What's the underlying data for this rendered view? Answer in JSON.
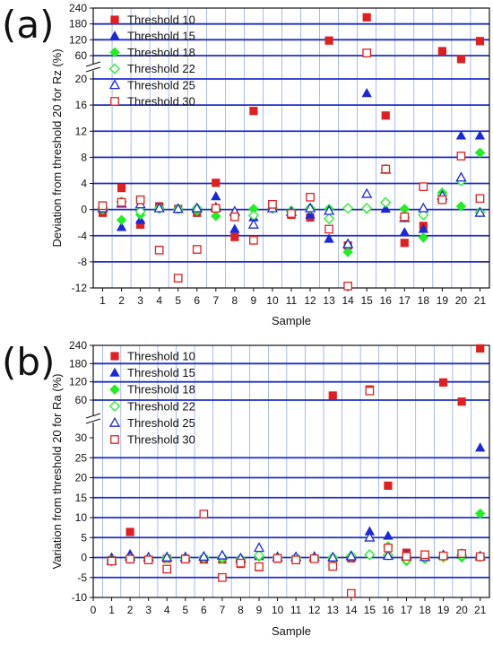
{
  "chart_data": [
    {
      "panel": "(a)",
      "type": "scatter",
      "xlabel": "Sample",
      "ylabel": "Deviation from threshold 20 for Rz (%)",
      "xlim": [
        0.5,
        21.5
      ],
      "x_ticks": [
        "1",
        "2",
        "3",
        "4",
        "5",
        "6",
        "7",
        "8",
        "9",
        "10",
        "11",
        "12",
        "13",
        "14",
        "15",
        "16",
        "17",
        "18",
        "19",
        "20",
        "21"
      ],
      "y_axis": "broken",
      "y_lower_ticks": [
        "-12",
        "-8",
        "-4",
        "0",
        "4",
        "8",
        "12",
        "16",
        "20"
      ],
      "y_upper_ticks": [
        "60",
        "120",
        "180",
        "240"
      ],
      "grid": "horizontal blue lines and vertical blue lines at each sample",
      "legend": "top-left",
      "x": [
        1,
        2,
        3,
        4,
        5,
        6,
        7,
        8,
        9,
        10,
        11,
        12,
        13,
        14,
        15,
        16,
        17,
        18,
        19,
        20,
        21
      ],
      "series": [
        {
          "name": "Threshold 10",
          "marker": "square-filled",
          "color": "#e02020",
          "values": [
            -0.5,
            3.3,
            -2.3,
            0.5,
            0.1,
            -0.5,
            4.1,
            -4.2,
            15.1,
            0.5,
            -0.8,
            -1.2,
            117,
            -5.5,
            205,
            14.4,
            -5.1,
            -2.5,
            77,
            47,
            115
          ]
        },
        {
          "name": "Threshold 15",
          "marker": "triangle-filled",
          "color": "#1c28d8",
          "values": [
            0.2,
            -2.7,
            -1.6,
            0.2,
            0.1,
            0.1,
            2.0,
            -3.0,
            -1.2,
            0.2,
            -0.2,
            -0.8,
            -4.5,
            -5.2,
            17.8,
            0.1,
            -3.5,
            -3.0,
            1.8,
            11.3,
            11.3
          ]
        },
        {
          "name": "Threshold 18",
          "marker": "diamond-filled",
          "color": "#22ee22",
          "values": [
            0.0,
            -1.6,
            -0.8,
            0.1,
            0.1,
            -0.2,
            -1.0,
            -1.0,
            0.1,
            0.1,
            -0.3,
            0.1,
            0.1,
            -6.5,
            0.1,
            6.2,
            0.1,
            -4.3,
            2.6,
            0.5,
            8.7
          ]
        },
        {
          "name": "Threshold 22",
          "marker": "diamond-open",
          "color": "#22ee22",
          "values": [
            0.2,
            1.2,
            -0.3,
            0.2,
            0.1,
            0.2,
            0.2,
            -0.8,
            -0.9,
            0.2,
            -0.2,
            0.2,
            -1.4,
            0.2,
            0.2,
            1.1,
            -1.2,
            -0.8,
            2.2,
            4.4,
            -0.4
          ]
        },
        {
          "name": "Threshold 25",
          "marker": "triangle-open",
          "color": "#1c28d8",
          "values": [
            0.2,
            0.9,
            0.8,
            0.2,
            0.1,
            0.2,
            0.3,
            -0.3,
            -2.3,
            0.2,
            -0.4,
            0.2,
            -0.2,
            -5.3,
            2.4,
            6.1,
            -1.3,
            0.2,
            2.1,
            4.9,
            -0.5
          ]
        },
        {
          "name": "Threshold 30",
          "marker": "square-open",
          "color": "#e02020",
          "values": [
            0.6,
            1.1,
            1.5,
            -6.2,
            -10.5,
            -6.1,
            0.2,
            -1.1,
            -4.7,
            0.8,
            -0.6,
            1.9,
            -3.0,
            -11.7,
            70,
            6.2,
            -1.1,
            3.5,
            1.5,
            8.2,
            1.7
          ]
        }
      ]
    },
    {
      "panel": "(b)",
      "type": "scatter",
      "xlabel": "Sample",
      "ylabel": "Variation from threshold 20 for Ra (%)",
      "xlim": [
        0,
        21.5
      ],
      "x_ticks": [
        "0",
        "1",
        "2",
        "3",
        "4",
        "5",
        "6",
        "7",
        "8",
        "9",
        "10",
        "11",
        "12",
        "13",
        "14",
        "15",
        "16",
        "17",
        "18",
        "19",
        "20",
        "21"
      ],
      "y_axis": "broken",
      "y_lower_ticks": [
        "-10",
        "-5",
        "0",
        "5",
        "10",
        "15",
        "20",
        "25",
        "30"
      ],
      "y_upper_ticks": [
        "60",
        "120",
        "180",
        "240"
      ],
      "grid": "horizontal blue lines and vertical blue lines at each sample",
      "legend": "top-left",
      "x": [
        1,
        2,
        3,
        4,
        5,
        6,
        7,
        8,
        9,
        10,
        11,
        12,
        13,
        14,
        15,
        16,
        17,
        18,
        19,
        20,
        21
      ],
      "series": [
        {
          "name": "Threshold 10",
          "marker": "square-filled",
          "color": "#e02020",
          "values": [
            -0.7,
            6.4,
            -0.6,
            -0.3,
            -0.3,
            -0.5,
            -0.5,
            -1.6,
            -2.4,
            -0.3,
            -0.5,
            -0.3,
            75,
            -0.2,
            95,
            18.0,
            1.2,
            0.7,
            118,
            55,
            230
          ]
        },
        {
          "name": "Threshold 15",
          "marker": "triangle-filled",
          "color": "#1c28d8",
          "values": [
            0.0,
            0.8,
            0.1,
            0.2,
            0.2,
            0.3,
            0.5,
            -0.5,
            0.3,
            0.2,
            0.0,
            0.3,
            0.1,
            0.5,
            6.5,
            5.4,
            0.5,
            0.3,
            0.5,
            0.6,
            27.5
          ]
        },
        {
          "name": "Threshold 18",
          "marker": "diamond-filled",
          "color": "#22ee22",
          "values": [
            -0.6,
            -0.2,
            -0.4,
            -0.2,
            -0.2,
            -0.1,
            -0.3,
            -0.6,
            0.2,
            0.0,
            -0.1,
            -0.1,
            -0.2,
            0.3,
            0.8,
            2.8,
            -0.9,
            -0.4,
            0.0,
            0.0,
            11.0
          ]
        },
        {
          "name": "Threshold 22",
          "marker": "diamond-open",
          "color": "#22ee22",
          "values": [
            -0.9,
            -0.3,
            -0.3,
            -0.1,
            -0.1,
            0.0,
            0.1,
            -0.3,
            0.5,
            0.0,
            0.0,
            0.0,
            0.0,
            0.4,
            0.7,
            0.6,
            -0.5,
            -0.1,
            0.2,
            0.6,
            0.2
          ]
        },
        {
          "name": "Threshold 25",
          "marker": "triangle-open",
          "color": "#1c28d8",
          "values": [
            -0.8,
            0.2,
            0.0,
            0.0,
            0.0,
            0.2,
            0.5,
            -0.2,
            2.4,
            0.1,
            0.1,
            0.1,
            0.0,
            0.3,
            5.0,
            0.4,
            0.3,
            0.1,
            0.6,
            0.9,
            0.3
          ]
        },
        {
          "name": "Threshold 30",
          "marker": "square-open",
          "color": "#e02020",
          "values": [
            -0.9,
            -0.4,
            -0.6,
            -2.9,
            -0.4,
            10.9,
            -5.0,
            -1.4,
            -2.3,
            -0.2,
            -0.6,
            -0.3,
            -2.2,
            -9.0,
            90,
            2.4,
            0.3,
            0.7,
            0.4,
            1.0,
            0.2
          ]
        }
      ]
    }
  ]
}
